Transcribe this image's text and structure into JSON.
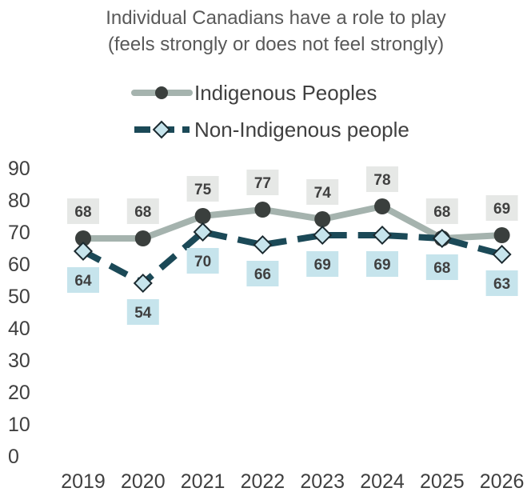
{
  "chart_data": {
    "type": "line",
    "title": "Individual Canadians have a role to play",
    "subtitle": "(feels strongly or does not feel strongly)",
    "categories": [
      "2019",
      "2020",
      "2021",
      "2022",
      "2023",
      "2024",
      "2025",
      "2026"
    ],
    "series": [
      {
        "name": "Indigenous Peoples",
        "values": [
          68,
          68,
          75,
          77,
          74,
          78,
          68,
          69
        ],
        "color": "#A5B3AE",
        "marker_color": "#3A3F3D",
        "label_bg": "#E6E8E6",
        "line_style": "solid",
        "marker": "circle"
      },
      {
        "name": "Non-Indigenous people",
        "values": [
          64,
          54,
          70,
          66,
          69,
          69,
          68,
          63
        ],
        "color": "#1B4957",
        "marker_color": "#C6E4EC",
        "label_bg": "#C6E4EC",
        "line_style": "dashed",
        "marker": "diamond"
      }
    ],
    "ylim": [
      0,
      90
    ],
    "yticks": [
      0,
      10,
      20,
      30,
      40,
      50,
      60,
      70,
      80,
      90
    ],
    "grid": false,
    "legend_position": "top"
  }
}
